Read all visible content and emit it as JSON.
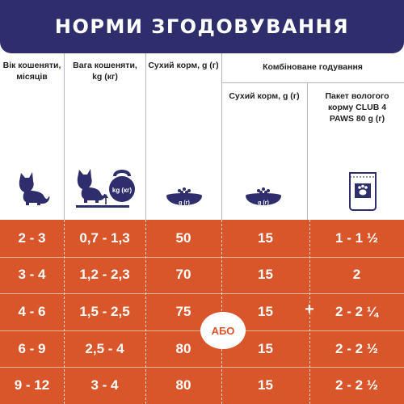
{
  "header": {
    "title": "НОРМИ ЗГОДОВУВАННЯ"
  },
  "columns": {
    "age": "Вік кошеняти, місяців",
    "weight": "Вага кошеняти, kg (кг)",
    "dry": "Сухий корм, g (г)",
    "combined": "Комбіноване годування",
    "combined_dry": "Сухий корм, g (г)",
    "wet": "Пакет вологого корму CLUB 4 PAWS 80 g (г)"
  },
  "icons": {
    "kettlebell_label": "kg (кг)",
    "bowl_label": "g (г)"
  },
  "rows": [
    {
      "age": "2 - 3",
      "weight": "0,7 - 1,3",
      "dry": "50",
      "combined_dry": "15",
      "wet": "1 - 1 ½"
    },
    {
      "age": "3 - 4",
      "weight": "1,2 - 2,3",
      "dry": "70",
      "combined_dry": "15",
      "wet": "2"
    },
    {
      "age": "4 - 6",
      "weight": "1,5 - 2,5",
      "dry": "75",
      "combined_dry": "15",
      "wet": "2 - 2 ¼"
    },
    {
      "age": "6 - 9",
      "weight": "2,5 - 4",
      "dry": "80",
      "combined_dry": "15",
      "wet": "2 - 2 ½"
    },
    {
      "age": "9 - 12",
      "weight": "3 - 4",
      "dry": "80",
      "combined_dry": "15",
      "wet": "2 - 2 ½"
    }
  ],
  "or_label": "АБО",
  "plus_label": "+",
  "colors": {
    "navy": "#2d2e6b",
    "orange": "#d8562a"
  }
}
